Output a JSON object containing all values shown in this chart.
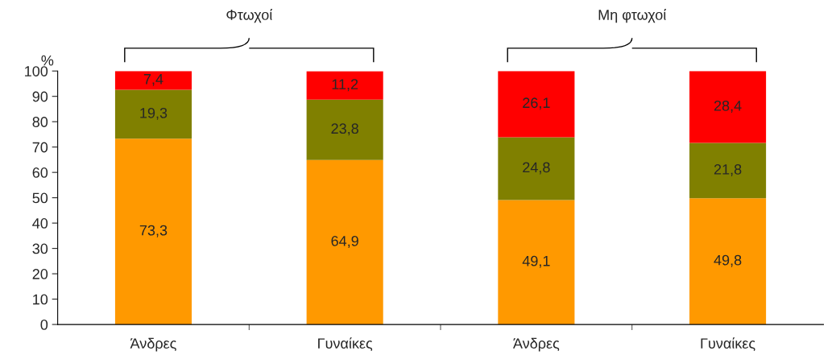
{
  "chart_data": {
    "type": "bar",
    "stacked": true,
    "ylabel": "%",
    "categories": [
      "Άνδρες",
      "Γυναίκες",
      "Άνδρες",
      "Γυναίκες"
    ],
    "series": [
      {
        "color": "#ff9900",
        "values": [
          73.3,
          64.9,
          49.1,
          49.8
        ],
        "value_labels": [
          "73,3",
          "64,9",
          "49,1",
          "49,8"
        ]
      },
      {
        "color": "#808000",
        "values": [
          19.3,
          23.8,
          24.8,
          21.8
        ],
        "value_labels": [
          "19,3",
          "23,8",
          "24,8",
          "21,8"
        ]
      },
      {
        "color": "#ff0000",
        "values": [
          7.4,
          11.2,
          26.1,
          28.4
        ],
        "value_labels": [
          "7,4",
          "11,2",
          "26,1",
          "28,4"
        ]
      }
    ],
    "ylim": [
      0,
      100
    ],
    "yticks": [
      0,
      10,
      20,
      30,
      40,
      50,
      60,
      70,
      80,
      90,
      100
    ],
    "grid": false,
    "legend": false,
    "annotations": [
      "Φτωχοί",
      "Μη φτωχοί"
    ]
  }
}
